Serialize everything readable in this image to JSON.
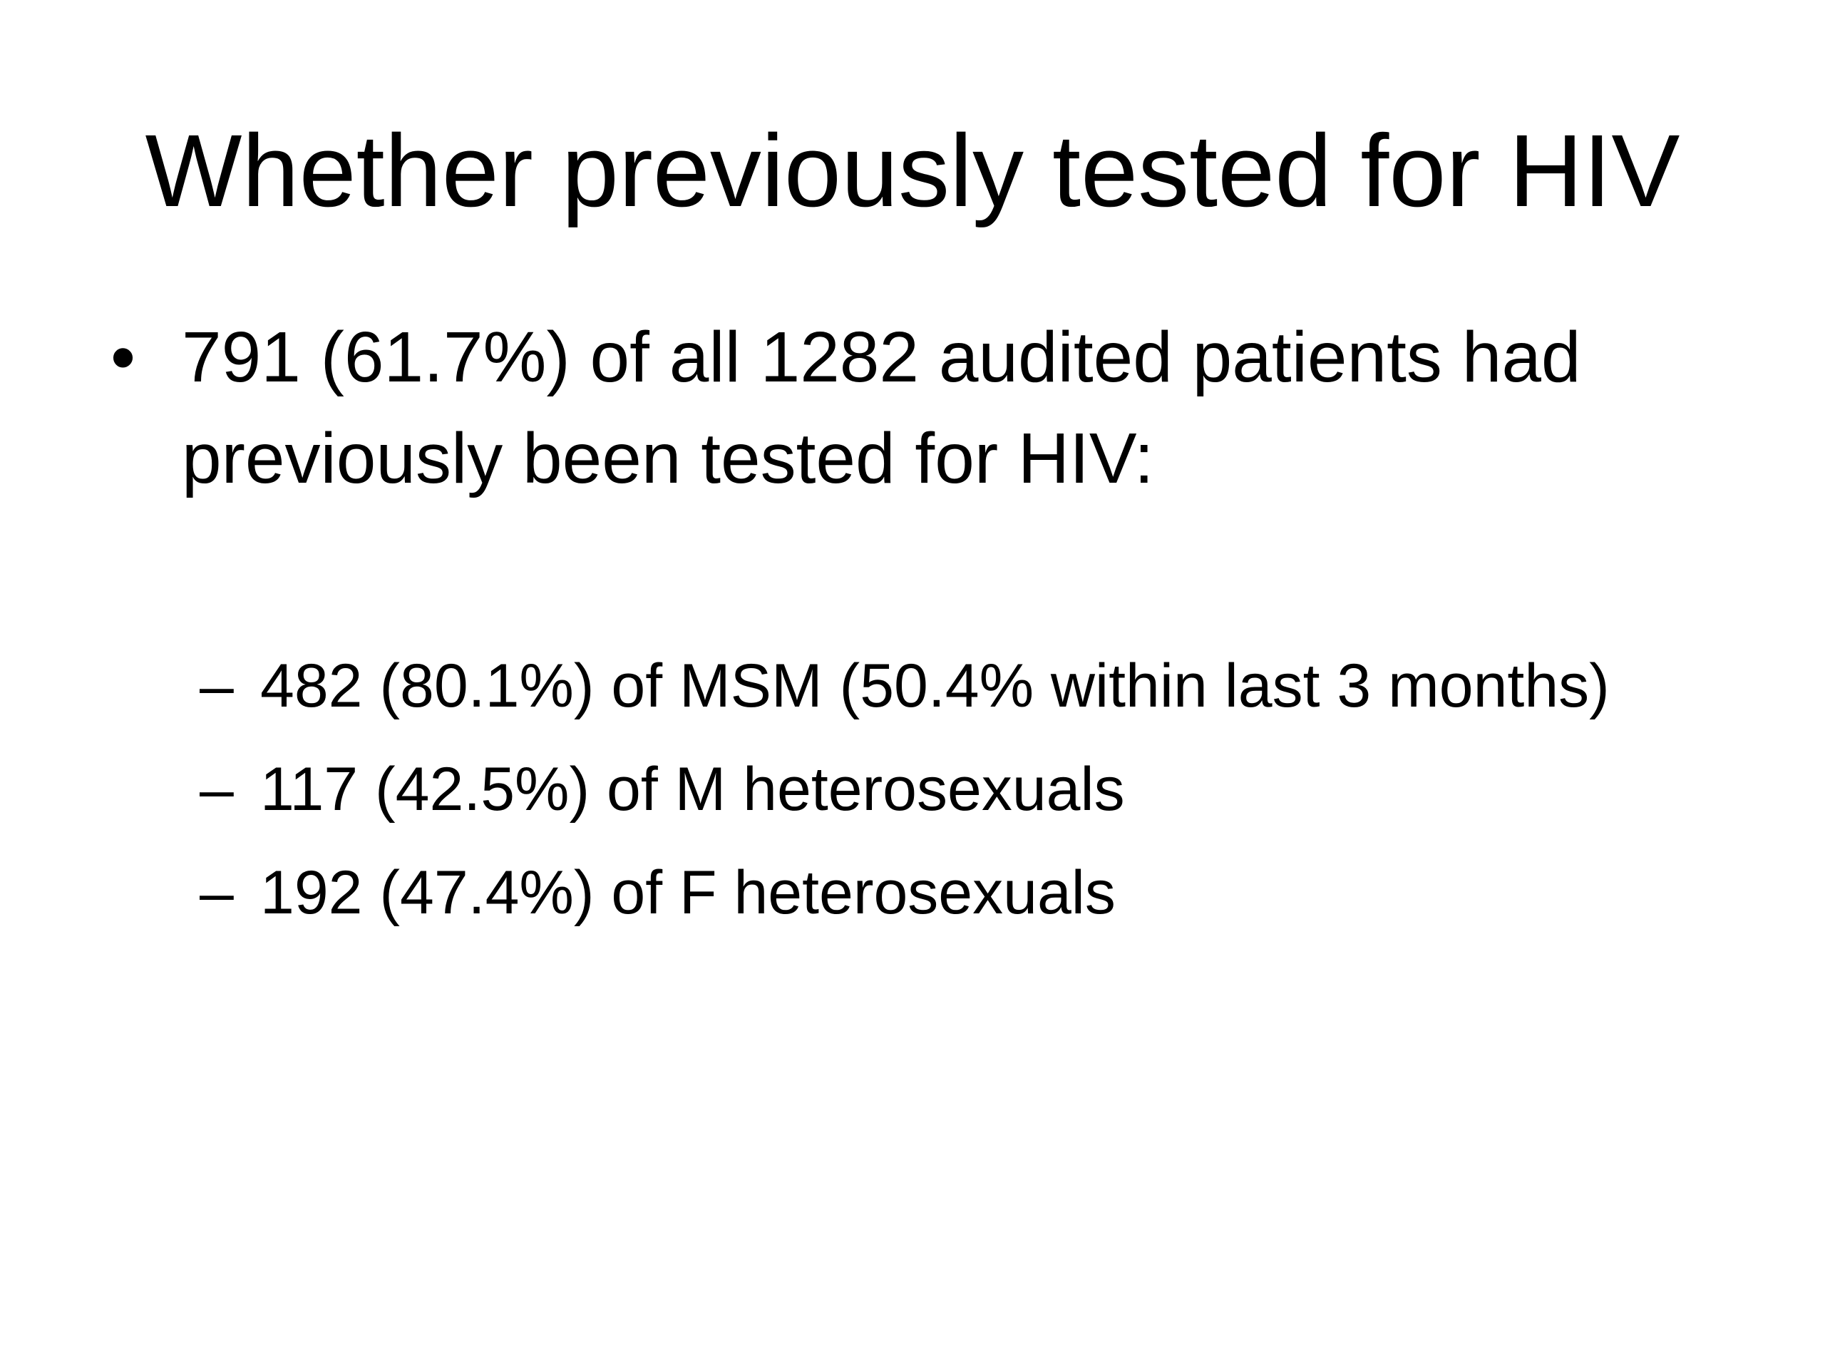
{
  "slide": {
    "title": "Whether previously tested for HIV",
    "bullet": {
      "marker": "•",
      "text": "791 (61.7%) of all 1282 audited patients had previously been tested for HIV:"
    },
    "sub_items": [
      {
        "marker": "–",
        "text": "482 (80.1%) of MSM (50.4% within last 3 months)"
      },
      {
        "marker": "–",
        "text": "117 (42.5%) of M heterosexuals"
      },
      {
        "marker": "–",
        "text": "192 (47.4%) of F heterosexuals"
      }
    ]
  }
}
